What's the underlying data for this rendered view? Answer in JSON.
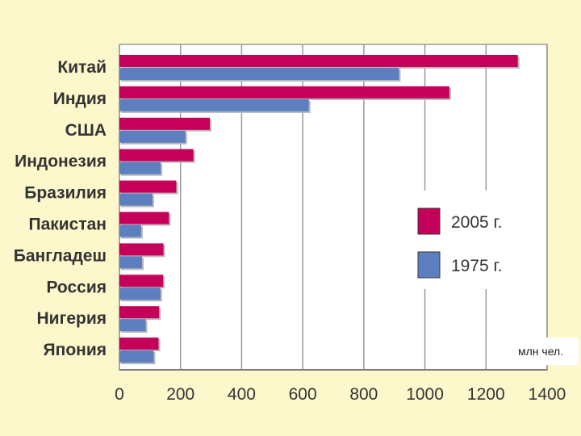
{
  "chart_data": {
    "type": "bar",
    "orientation": "horizontal",
    "categories": [
      "Китай",
      "Индия",
      "США",
      "Индонезия",
      "Бразилия",
      "Пакистан",
      "Бангладеш",
      "Россия",
      "Нигерия",
      "Япония"
    ],
    "series": [
      {
        "name": "2005 г.",
        "color": "#c4005a",
        "values": [
          1304,
          1080,
          296,
          242,
          186,
          162,
          144,
          143,
          130,
          128
        ]
      },
      {
        "name": "1975 г.",
        "color": "#5d7fc0",
        "values": [
          915,
          620,
          216,
          135,
          108,
          71,
          74,
          134,
          86,
          112
        ]
      }
    ],
    "xlim": [
      0,
      1400
    ],
    "xticks": [
      "0",
      "200",
      "400",
      "600",
      "800",
      "1000",
      "1200",
      "1400"
    ],
    "unit_label": "млн чел.",
    "legend_position": "right",
    "grid": true
  }
}
